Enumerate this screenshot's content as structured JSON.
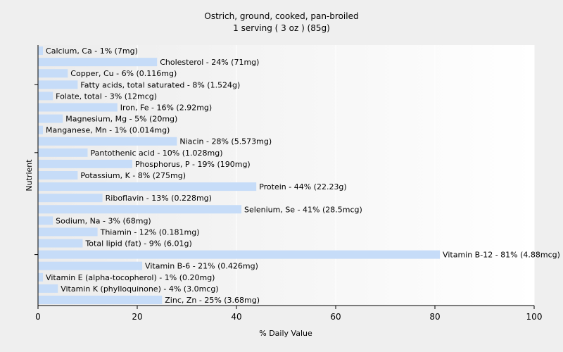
{
  "chart_data": {
    "type": "bar",
    "orientation": "horizontal",
    "title": "Ostrich, ground, cooked, pan-broiled",
    "subtitle": "1 serving ( 3 oz ) (85g)",
    "xlabel": "% Daily Value",
    "ylabel": "Nutrient",
    "xlim": [
      0,
      100
    ],
    "xticks": [
      "0",
      "20",
      "40",
      "60",
      "80",
      "100"
    ],
    "grid": true,
    "bar_color": "#c6dcf8",
    "categories": [
      "Calcium, Ca",
      "Cholesterol",
      "Copper, Cu",
      "Fatty acids, total saturated",
      "Folate, total",
      "Iron, Fe",
      "Magnesium, Mg",
      "Manganese, Mn",
      "Niacin",
      "Pantothenic acid",
      "Phosphorus, P",
      "Potassium, K",
      "Protein",
      "Riboflavin",
      "Selenium, Se",
      "Sodium, Na",
      "Thiamin",
      "Total lipid (fat)",
      "Vitamin B-12",
      "Vitamin B-6",
      "Vitamin E (alpha-tocopherol)",
      "Vitamin K (phylloquinone)",
      "Zinc, Zn"
    ],
    "values": [
      1,
      24,
      6,
      8,
      3,
      16,
      5,
      1,
      28,
      10,
      19,
      8,
      44,
      13,
      41,
      3,
      12,
      9,
      81,
      21,
      1,
      4,
      25
    ],
    "labels": [
      "Calcium, Ca - 1% (7mg)",
      "Cholesterol - 24% (71mg)",
      "Copper, Cu - 6% (0.116mg)",
      "Fatty acids, total saturated - 8% (1.524g)",
      "Folate, total - 3% (12mcg)",
      "Iron, Fe - 16% (2.92mg)",
      "Magnesium, Mg - 5% (20mg)",
      "Manganese, Mn - 1% (0.014mg)",
      "Niacin - 28% (5.573mg)",
      "Pantothenic acid - 10% (1.028mg)",
      "Phosphorus, P - 19% (190mg)",
      "Potassium, K - 8% (275mg)",
      "Protein - 44% (22.23g)",
      "Riboflavin - 13% (0.228mg)",
      "Selenium, Se - 41% (28.5mcg)",
      "Sodium, Na - 3% (68mg)",
      "Thiamin - 12% (0.181mg)",
      "Total lipid (fat) - 9% (6.01g)",
      "Vitamin B-12 - 81% (4.88mcg)",
      "Vitamin B-6 - 21% (0.426mg)",
      "Vitamin E (alpha-tocopherol) - 1% (0.20mg)",
      "Vitamin K (phylloquinone) - 4% (3.0mcg)",
      "Zinc, Zn - 25% (3.68mg)"
    ]
  }
}
